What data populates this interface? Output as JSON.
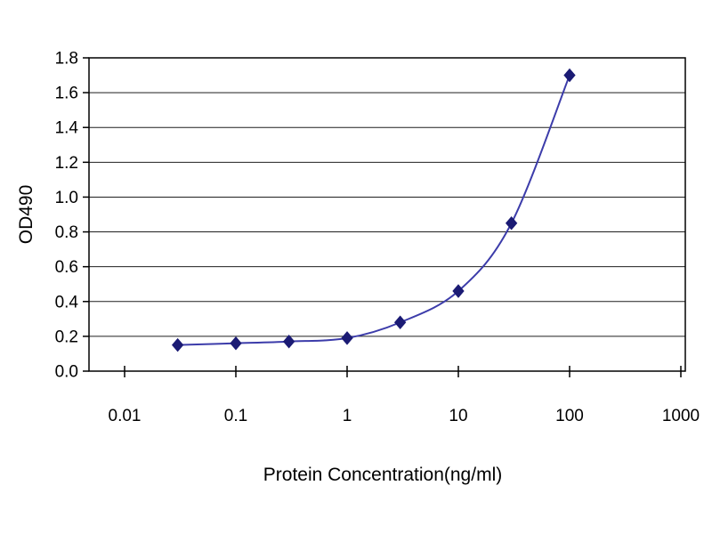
{
  "chart_data": {
    "type": "line",
    "title": "",
    "xlabel": "Protein Concentration(ng/ml)",
    "ylabel": "OD490",
    "xscale": "log",
    "x": [
      0.03,
      0.1,
      0.3,
      1,
      3,
      10,
      30,
      100
    ],
    "y": [
      0.15,
      0.16,
      0.17,
      0.19,
      0.28,
      0.46,
      0.85,
      1.7
    ],
    "xticks": [
      0.01,
      0.1,
      1,
      10,
      100,
      1000
    ],
    "xtick_labels": [
      "0.01",
      "0.1",
      "1",
      "10",
      "100",
      "1000"
    ],
    "yticks": [
      0,
      0.2,
      0.4,
      0.6,
      0.8,
      1.0,
      1.2,
      1.4,
      1.6,
      1.8
    ],
    "ytick_labels": [
      "0.0",
      "0.2",
      "0.4",
      "0.6",
      "0.8",
      "1.0",
      "1.2",
      "1.4",
      "1.6",
      "1.8"
    ],
    "xlim_ticks": [
      0.01,
      1000
    ],
    "ylim": [
      0,
      1.8
    ],
    "grid": "horizontal",
    "legend": "none",
    "marker": "diamond",
    "line_color": "#3c3caa",
    "marker_color": "#1b1b74",
    "axis_color": "#000000",
    "background": "#ffffff"
  }
}
